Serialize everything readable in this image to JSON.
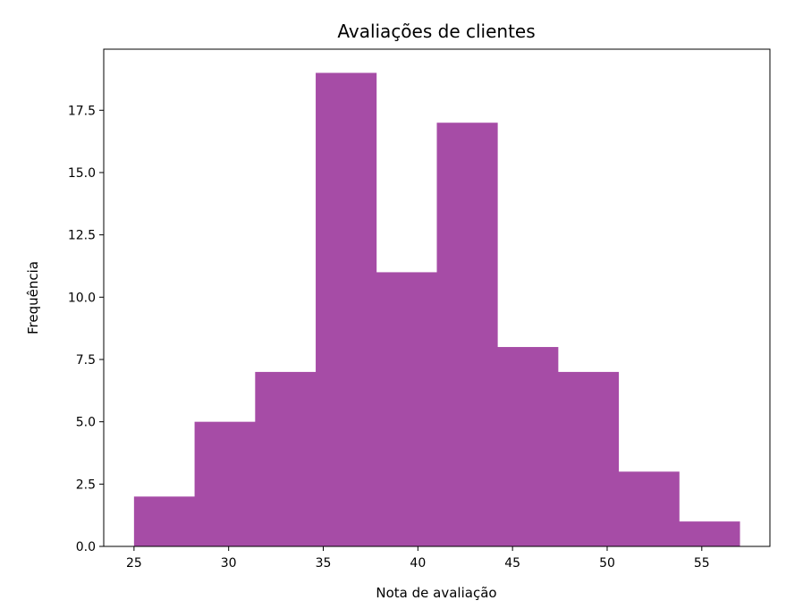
{
  "chart_data": {
    "type": "bar",
    "title": "Avaliações de clientes",
    "xlabel": "Nota de avaliação",
    "ylabel": "Frequência",
    "bin_edges": [
      25.0,
      28.2,
      31.4,
      34.6,
      37.8,
      41.0,
      44.2,
      47.4,
      50.6,
      53.8,
      57.0
    ],
    "values": [
      2,
      5,
      7,
      19,
      11,
      17,
      8,
      7,
      3,
      1
    ],
    "xlim": [
      23.4,
      58.6
    ],
    "ylim": [
      0,
      19.95
    ],
    "xticks": [
      25,
      30,
      35,
      40,
      45,
      50,
      55
    ],
    "xtick_labels": [
      "25",
      "30",
      "35",
      "40",
      "45",
      "50",
      "55"
    ],
    "yticks": [
      0,
      2.5,
      5,
      7.5,
      10,
      12.5,
      15,
      17.5
    ],
    "ytick_labels": [
      "0.0",
      "2.5",
      "5.0",
      "7.5",
      "10.0",
      "12.5",
      "15.0",
      "17.5"
    ],
    "bar_color": "#a64ca6",
    "grid": false,
    "legend": false
  }
}
